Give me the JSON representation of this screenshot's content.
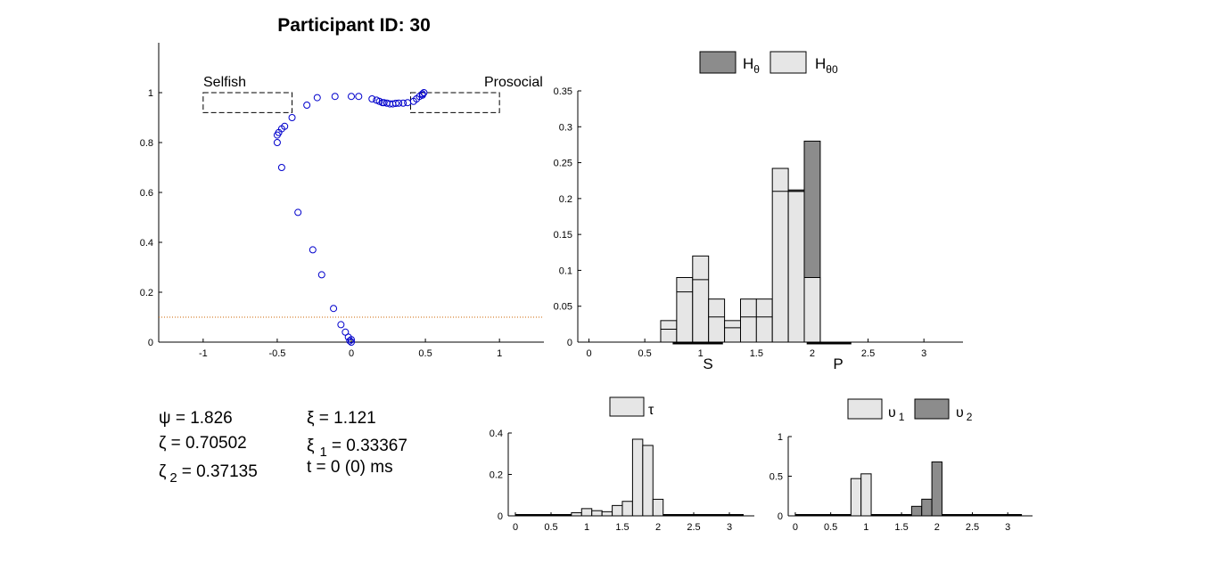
{
  "title": "Participant ID: 30",
  "stats": {
    "psi": "ψ = 1.826",
    "zeta": "ζ = 0.70502",
    "zeta2_sym": "ζ",
    "zeta2_sub": "2",
    "zeta2_val": "= 0.37135",
    "xi": "ξ = 1.121",
    "xi1_sym": "ξ",
    "xi1_sub": "1",
    "xi1_val": "= 0.33367",
    "t": "t = 0 (0) ms"
  },
  "colors": {
    "scatter": "#0000cc",
    "threshold": "#cc6600",
    "hist_light": "#e6e6e6",
    "hist_dark": "#8c8c8c"
  },
  "chart_data": [
    {
      "type": "scatter",
      "xlim": [
        -1.3,
        1.3
      ],
      "ylim": [
        0,
        1.2
      ],
      "xticks": [
        "-1",
        "-0.5",
        "0",
        "0.5",
        "1"
      ],
      "yticks": [
        "0",
        "0.2",
        "0.4",
        "0.6",
        "0.8",
        "1"
      ],
      "threshold_y": 0.1,
      "annotations": {
        "selfish": {
          "label": "Selfish",
          "x": [
            -1,
            -0.4
          ],
          "y": [
            0.92,
            1.0
          ]
        },
        "prosocial": {
          "label": "Prosocial",
          "x": [
            0.4,
            1.0
          ],
          "y": [
            0.92,
            1.0
          ]
        }
      },
      "points": [
        [
          0.0,
          0.0
        ],
        [
          0.0,
          0.01
        ],
        [
          -0.01,
          0.005
        ],
        [
          -0.02,
          0.02
        ],
        [
          -0.04,
          0.04
        ],
        [
          -0.07,
          0.07
        ],
        [
          -0.12,
          0.135
        ],
        [
          -0.2,
          0.27
        ],
        [
          -0.26,
          0.37
        ],
        [
          -0.36,
          0.52
        ],
        [
          -0.47,
          0.7
        ],
        [
          -0.5,
          0.8
        ],
        [
          -0.5,
          0.83
        ],
        [
          -0.49,
          0.84
        ],
        [
          -0.47,
          0.855
        ],
        [
          -0.45,
          0.865
        ],
        [
          -0.4,
          0.9
        ],
        [
          -0.3,
          0.95
        ],
        [
          -0.23,
          0.98
        ],
        [
          -0.11,
          0.985
        ],
        [
          0.0,
          0.985
        ],
        [
          0.05,
          0.985
        ],
        [
          0.14,
          0.975
        ],
        [
          0.17,
          0.97
        ],
        [
          0.19,
          0.965
        ],
        [
          0.21,
          0.96
        ],
        [
          0.22,
          0.96
        ],
        [
          0.24,
          0.958
        ],
        [
          0.26,
          0.955
        ],
        [
          0.28,
          0.955
        ],
        [
          0.3,
          0.957
        ],
        [
          0.32,
          0.958
        ],
        [
          0.35,
          0.958
        ],
        [
          0.38,
          0.96
        ],
        [
          0.42,
          0.965
        ],
        [
          0.44,
          0.975
        ],
        [
          0.46,
          0.985
        ],
        [
          0.48,
          0.99
        ],
        [
          0.48,
          0.995
        ],
        [
          0.49,
          1.0
        ]
      ]
    },
    {
      "type": "bar",
      "legend": [
        "Hθ",
        "Hθ0"
      ],
      "xlim": [
        -0.1,
        3.35
      ],
      "ylim": [
        0,
        0.35
      ],
      "xticks": [
        "0",
        "0.5",
        "1",
        "1.5",
        "2",
        "2.5",
        "3"
      ],
      "yticks": [
        "0",
        "0.05",
        "0.1",
        "0.15",
        "0.2",
        "0.25",
        "0.3",
        "0.35"
      ],
      "bin_width": 0.143,
      "x": [
        0.714,
        0.857,
        1.0,
        1.143,
        1.286,
        1.429,
        1.571,
        1.714,
        1.857,
        2.0
      ],
      "series": [
        {
          "name": "Hθ0",
          "values": [
            0.03,
            0.09,
            0.12,
            0.06,
            0.03,
            0.06,
            0.06,
            0.242,
            0.21,
            0.09
          ]
        },
        {
          "name": "Hθ",
          "values": [
            0.03,
            0.09,
            0.12,
            0.06,
            0.03,
            0.06,
            0.06,
            0.242,
            0.212,
            0.28
          ]
        }
      ],
      "inner_lines": [
        0.018,
        0.07,
        0.087,
        0.035,
        0.02,
        0.035,
        0.035,
        0.21,
        0.21,
        0.09
      ],
      "category_labels": [
        {
          "label": "S",
          "x": 1.0,
          "range": [
            0.75,
            1.2
          ]
        },
        {
          "label": "P",
          "x": 2.1,
          "range": [
            1.95,
            2.35
          ]
        }
      ]
    },
    {
      "type": "bar",
      "legend": [
        "τ"
      ],
      "xlim": [
        -0.1,
        3.35
      ],
      "ylim": [
        0,
        0.4
      ],
      "xticks": [
        "0",
        "0.5",
        "1",
        "1.5",
        "2",
        "2.5",
        "3"
      ],
      "yticks": [
        "0",
        "0.2",
        "0.4"
      ],
      "bin_width": 0.143,
      "x": [
        0.857,
        1.0,
        1.143,
        1.286,
        1.429,
        1.571,
        1.714,
        1.857,
        2.0
      ],
      "values": [
        0.015,
        0.035,
        0.025,
        0.02,
        0.05,
        0.07,
        0.37,
        0.34,
        0.08
      ]
    },
    {
      "type": "bar",
      "legend": [
        "υ1",
        "υ2"
      ],
      "xlim": [
        -0.1,
        3.35
      ],
      "ylim": [
        0,
        1
      ],
      "xticks": [
        "0",
        "0.5",
        "1",
        "1.5",
        "2",
        "2.5",
        "3"
      ],
      "yticks": [
        "0",
        "0.5",
        "1"
      ],
      "bin_width": 0.143,
      "series": [
        {
          "name": "υ1",
          "x": [
            0.857,
            1.0
          ],
          "values": [
            0.47,
            0.53
          ]
        },
        {
          "name": "υ2",
          "x": [
            1.714,
            1.857,
            2.0
          ],
          "values": [
            0.12,
            0.21,
            0.68
          ]
        }
      ]
    }
  ]
}
